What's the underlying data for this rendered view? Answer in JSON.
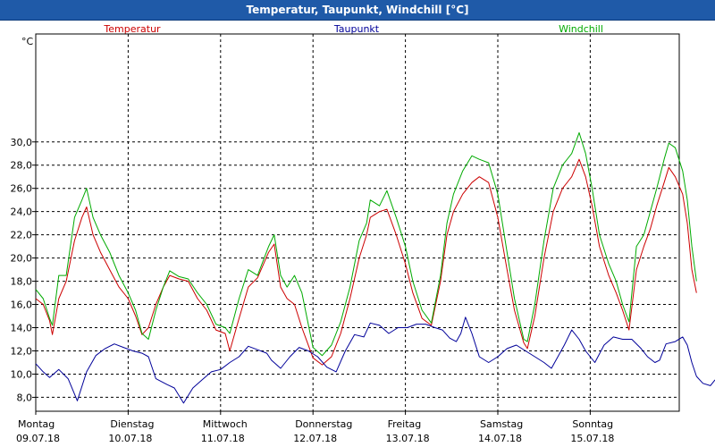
{
  "window": {
    "title": "Temperatur, Taupunkt, Windchill [°C]"
  },
  "chart_data": {
    "type": "line",
    "title": "Temperatur, Taupunkt, Windchill [°C]",
    "ylabel": "°C",
    "ylim": [
      6.8,
      39.3
    ],
    "xlim": [
      0,
      7.15
    ],
    "y_ticks": [
      8,
      10,
      12,
      14,
      16,
      18,
      20,
      22,
      24,
      26,
      28,
      30
    ],
    "y_tick_labels": [
      "8,0",
      "10,0",
      "12,0",
      "14,0",
      "16,0",
      "18,0",
      "20,0",
      "22,0",
      "24,0",
      "26,0",
      "28,0",
      "30,0"
    ],
    "x_ticks": [
      0,
      1,
      2,
      3,
      4,
      5,
      6
    ],
    "x_tick_labels": [
      {
        "day": "Montag",
        "date": "09.07.18"
      },
      {
        "day": "Dienstag",
        "date": "10.07.18"
      },
      {
        "day": "Mittwoch",
        "date": "11.07.18"
      },
      {
        "day": "Donnerstag",
        "date": "12.07.18"
      },
      {
        "day": "Freitag",
        "date": "13.07.18"
      },
      {
        "day": "Samstag",
        "date": "14.07.18"
      },
      {
        "day": "Sonntag",
        "date": "15.07.18"
      }
    ],
    "grid": true,
    "legend_position": "top",
    "series": [
      {
        "name": "Temperatur",
        "color": "#cc0000",
        "points": [
          [
            0,
            16.5
          ],
          [
            0.08,
            16.0
          ],
          [
            0.15,
            14.6
          ],
          [
            0.18,
            13.4
          ],
          [
            0.25,
            16.5
          ],
          [
            0.33,
            18.0
          ],
          [
            0.42,
            21.5
          ],
          [
            0.5,
            23.5
          ],
          [
            0.55,
            24.4
          ],
          [
            0.62,
            22.0
          ],
          [
            0.7,
            20.5
          ],
          [
            0.8,
            19.0
          ],
          [
            0.9,
            17.5
          ],
          [
            1.0,
            16.5
          ],
          [
            1.08,
            15.0
          ],
          [
            1.15,
            13.4
          ],
          [
            1.22,
            14.0
          ],
          [
            1.3,
            16.0
          ],
          [
            1.38,
            17.5
          ],
          [
            1.45,
            18.5
          ],
          [
            1.55,
            18.2
          ],
          [
            1.65,
            18.0
          ],
          [
            1.75,
            16.5
          ],
          [
            1.85,
            15.5
          ],
          [
            1.95,
            13.8
          ],
          [
            2.05,
            13.5
          ],
          [
            2.1,
            12.0
          ],
          [
            2.2,
            14.8
          ],
          [
            2.3,
            17.5
          ],
          [
            2.4,
            18.3
          ],
          [
            2.52,
            20.5
          ],
          [
            2.58,
            21.2
          ],
          [
            2.65,
            17.5
          ],
          [
            2.72,
            16.5
          ],
          [
            2.8,
            16.0
          ],
          [
            2.88,
            14.0
          ],
          [
            3.0,
            11.4
          ],
          [
            3.1,
            10.8
          ],
          [
            3.2,
            11.5
          ],
          [
            3.3,
            13.5
          ],
          [
            3.4,
            16.5
          ],
          [
            3.5,
            20.0
          ],
          [
            3.58,
            22.0
          ],
          [
            3.62,
            23.5
          ],
          [
            3.72,
            24.0
          ],
          [
            3.8,
            24.2
          ],
          [
            3.9,
            22.0
          ],
          [
            4.0,
            19.5
          ],
          [
            4.08,
            17.0
          ],
          [
            4.18,
            14.8
          ],
          [
            4.28,
            14.2
          ],
          [
            4.38,
            18.0
          ],
          [
            4.45,
            22.0
          ],
          [
            4.52,
            24.0
          ],
          [
            4.62,
            25.5
          ],
          [
            4.72,
            26.5
          ],
          [
            4.8,
            27.0
          ],
          [
            4.9,
            26.5
          ],
          [
            5.0,
            23.5
          ],
          [
            5.1,
            19.0
          ],
          [
            5.18,
            15.5
          ],
          [
            5.28,
            12.7
          ],
          [
            5.32,
            12.2
          ],
          [
            5.4,
            15.0
          ],
          [
            5.5,
            20.0
          ],
          [
            5.6,
            24.0
          ],
          [
            5.7,
            26.0
          ],
          [
            5.8,
            27.0
          ],
          [
            5.88,
            28.5
          ],
          [
            5.95,
            27.0
          ],
          [
            6.02,
            24.5
          ],
          [
            6.1,
            21.0
          ],
          [
            6.2,
            18.5
          ],
          [
            6.28,
            17.0
          ],
          [
            6.35,
            15.5
          ],
          [
            6.42,
            13.8
          ],
          [
            6.5,
            19.0
          ],
          [
            6.58,
            21.0
          ],
          [
            6.65,
            22.5
          ],
          [
            6.72,
            24.5
          ],
          [
            6.8,
            26.5
          ],
          [
            6.85,
            27.8
          ],
          [
            6.92,
            27.0
          ],
          [
            7.0,
            25.5
          ],
          [
            7.05,
            23.0
          ],
          [
            7.1,
            19.0
          ],
          [
            7.15,
            17.0
          ]
        ]
      },
      {
        "name": "Taupunkt",
        "color": "#000099",
        "points": [
          [
            0,
            10.9
          ],
          [
            0.08,
            10.2
          ],
          [
            0.15,
            9.7
          ],
          [
            0.25,
            10.4
          ],
          [
            0.35,
            9.6
          ],
          [
            0.45,
            7.7
          ],
          [
            0.55,
            10.2
          ],
          [
            0.65,
            11.6
          ],
          [
            0.75,
            12.2
          ],
          [
            0.85,
            12.6
          ],
          [
            0.95,
            12.3
          ],
          [
            1.05,
            12.0
          ],
          [
            1.15,
            11.8
          ],
          [
            1.22,
            11.5
          ],
          [
            1.3,
            9.6
          ],
          [
            1.42,
            9.1
          ],
          [
            1.5,
            8.8
          ],
          [
            1.6,
            7.5
          ],
          [
            1.7,
            8.8
          ],
          [
            1.8,
            9.5
          ],
          [
            1.9,
            10.2
          ],
          [
            2.0,
            10.4
          ],
          [
            2.1,
            11.0
          ],
          [
            2.2,
            11.5
          ],
          [
            2.3,
            12.4
          ],
          [
            2.4,
            12.1
          ],
          [
            2.5,
            11.8
          ],
          [
            2.55,
            11.2
          ],
          [
            2.65,
            10.5
          ],
          [
            2.75,
            11.5
          ],
          [
            2.85,
            12.3
          ],
          [
            2.95,
            12.0
          ],
          [
            3.05,
            11.5
          ],
          [
            3.15,
            10.6
          ],
          [
            3.25,
            10.2
          ],
          [
            3.35,
            12.0
          ],
          [
            3.45,
            13.4
          ],
          [
            3.55,
            13.2
          ],
          [
            3.62,
            14.4
          ],
          [
            3.72,
            14.2
          ],
          [
            3.82,
            13.5
          ],
          [
            3.92,
            14.0
          ],
          [
            4.02,
            14.0
          ],
          [
            4.12,
            14.3
          ],
          [
            4.22,
            14.3
          ],
          [
            4.32,
            14.0
          ],
          [
            4.4,
            13.8
          ],
          [
            4.48,
            13.1
          ],
          [
            4.55,
            12.8
          ],
          [
            4.6,
            13.5
          ],
          [
            4.65,
            14.9
          ],
          [
            4.72,
            13.5
          ],
          [
            4.8,
            11.5
          ],
          [
            4.9,
            11.0
          ],
          [
            5.0,
            11.5
          ],
          [
            5.1,
            12.2
          ],
          [
            5.2,
            12.5
          ],
          [
            5.3,
            12.0
          ],
          [
            5.4,
            11.5
          ],
          [
            5.5,
            11.0
          ],
          [
            5.58,
            10.5
          ],
          [
            5.65,
            11.5
          ],
          [
            5.72,
            12.5
          ],
          [
            5.8,
            13.8
          ],
          [
            5.88,
            13.0
          ],
          [
            5.95,
            12.0
          ],
          [
            6.05,
            11.0
          ],
          [
            6.15,
            12.5
          ],
          [
            6.25,
            13.2
          ],
          [
            6.35,
            13.0
          ],
          [
            6.45,
            13.0
          ],
          [
            6.55,
            12.2
          ],
          [
            6.62,
            11.5
          ],
          [
            6.7,
            11.0
          ],
          [
            6.75,
            11.2
          ],
          [
            6.82,
            12.6
          ],
          [
            6.92,
            12.8
          ],
          [
            7.0,
            13.2
          ],
          [
            7.05,
            12.5
          ],
          [
            7.1,
            11.0
          ],
          [
            7.15,
            9.8
          ],
          [
            7.22,
            9.2
          ],
          [
            7.3,
            9.0
          ],
          [
            7.35,
            9.5
          ]
        ]
      },
      {
        "name": "Windchill",
        "color": "#00aa00",
        "points": [
          [
            0,
            17.3
          ],
          [
            0.08,
            16.5
          ],
          [
            0.15,
            14.8
          ],
          [
            0.18,
            14.2
          ],
          [
            0.25,
            18.5
          ],
          [
            0.33,
            18.5
          ],
          [
            0.42,
            23.5
          ],
          [
            0.5,
            25.0
          ],
          [
            0.55,
            26.0
          ],
          [
            0.62,
            23.5
          ],
          [
            0.7,
            22.0
          ],
          [
            0.8,
            20.5
          ],
          [
            0.9,
            18.5
          ],
          [
            1.0,
            17.0
          ],
          [
            1.08,
            15.5
          ],
          [
            1.15,
            13.5
          ],
          [
            1.22,
            13.0
          ],
          [
            1.3,
            15.5
          ],
          [
            1.38,
            17.5
          ],
          [
            1.45,
            18.9
          ],
          [
            1.55,
            18.4
          ],
          [
            1.65,
            18.2
          ],
          [
            1.75,
            17.0
          ],
          [
            1.85,
            16.0
          ],
          [
            1.95,
            14.3
          ],
          [
            2.05,
            14.0
          ],
          [
            2.1,
            13.5
          ],
          [
            2.2,
            16.5
          ],
          [
            2.3,
            19.0
          ],
          [
            2.4,
            18.5
          ],
          [
            2.52,
            21.0
          ],
          [
            2.58,
            22.0
          ],
          [
            2.65,
            18.5
          ],
          [
            2.72,
            17.5
          ],
          [
            2.8,
            18.5
          ],
          [
            2.88,
            17.0
          ],
          [
            3.0,
            12.3
          ],
          [
            3.1,
            11.6
          ],
          [
            3.2,
            12.5
          ],
          [
            3.3,
            14.5
          ],
          [
            3.4,
            17.5
          ],
          [
            3.5,
            21.5
          ],
          [
            3.58,
            23.0
          ],
          [
            3.62,
            25.0
          ],
          [
            3.72,
            24.5
          ],
          [
            3.8,
            25.8
          ],
          [
            3.9,
            23.5
          ],
          [
            4.0,
            21.0
          ],
          [
            4.08,
            18.0
          ],
          [
            4.18,
            15.5
          ],
          [
            4.28,
            14.4
          ],
          [
            4.38,
            18.5
          ],
          [
            4.45,
            23.0
          ],
          [
            4.52,
            25.5
          ],
          [
            4.62,
            27.5
          ],
          [
            4.72,
            28.8
          ],
          [
            4.8,
            28.5
          ],
          [
            4.9,
            28.2
          ],
          [
            5.0,
            25.5
          ],
          [
            5.1,
            20.5
          ],
          [
            5.18,
            16.5
          ],
          [
            5.28,
            13.0
          ],
          [
            5.32,
            12.8
          ],
          [
            5.4,
            16.0
          ],
          [
            5.5,
            21.5
          ],
          [
            5.6,
            26.0
          ],
          [
            5.7,
            28.0
          ],
          [
            5.8,
            29.0
          ],
          [
            5.88,
            30.8
          ],
          [
            5.95,
            29.0
          ],
          [
            6.02,
            26.0
          ],
          [
            6.1,
            22.0
          ],
          [
            6.2,
            19.5
          ],
          [
            6.28,
            18.0
          ],
          [
            6.35,
            16.0
          ],
          [
            6.42,
            14.5
          ],
          [
            6.5,
            21.0
          ],
          [
            6.58,
            22.0
          ],
          [
            6.65,
            24.0
          ],
          [
            6.72,
            26.0
          ],
          [
            6.8,
            28.5
          ],
          [
            6.85,
            29.9
          ],
          [
            6.92,
            29.5
          ],
          [
            7.0,
            27.5
          ],
          [
            7.05,
            25.0
          ],
          [
            7.1,
            21.0
          ],
          [
            7.15,
            18.0
          ]
        ]
      }
    ]
  }
}
